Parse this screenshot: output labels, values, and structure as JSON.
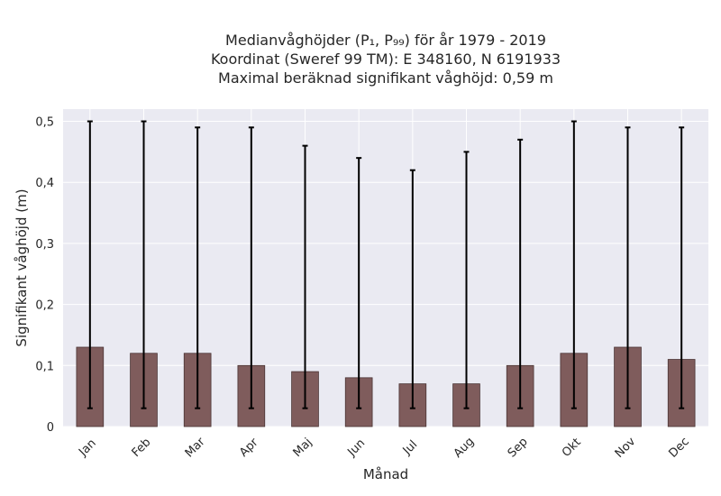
{
  "chart_data": {
    "type": "bar",
    "title_lines": [
      "Medianvåghöjder (P₁, P₉₉) för år 1979 - 2019",
      "Koordinat (Sweref 99 TM): E 348160, N 6191933",
      "Maximal beräknad signifikant våghöjd: 0,59 m"
    ],
    "xlabel": "Månad",
    "ylabel": "Signifikant våghöjd (m)",
    "categories": [
      "Jan",
      "Feb",
      "Mar",
      "Apr",
      "Maj",
      "Jun",
      "Jul",
      "Aug",
      "Sep",
      "Okt",
      "Nov",
      "Dec"
    ],
    "series": [
      {
        "values": [
          0.13,
          0.12,
          0.12,
          0.1,
          0.09,
          0.08,
          0.07,
          0.07,
          0.1,
          0.12,
          0.13,
          0.11
        ],
        "lower": [
          0.03,
          0.03,
          0.03,
          0.03,
          0.03,
          0.03,
          0.03,
          0.03,
          0.03,
          0.03,
          0.03,
          0.03
        ],
        "upper": [
          0.5,
          0.5,
          0.49,
          0.49,
          0.46,
          0.44,
          0.42,
          0.45,
          0.47,
          0.5,
          0.49,
          0.49
        ]
      }
    ],
    "ylim": [
      0,
      0.52
    ],
    "yticks": [
      0,
      0.1,
      0.2,
      0.3,
      0.4,
      0.5
    ],
    "ytick_labels": [
      "0",
      "0,1",
      "0,2",
      "0,3",
      "0,4",
      "0,5"
    ],
    "grid": true,
    "colors": {
      "bar": "#7f5c5c",
      "bar_edge": "#4a3434",
      "errorbar": "#000000",
      "background": "#eaeaf2",
      "grid": "#ffffff"
    }
  }
}
